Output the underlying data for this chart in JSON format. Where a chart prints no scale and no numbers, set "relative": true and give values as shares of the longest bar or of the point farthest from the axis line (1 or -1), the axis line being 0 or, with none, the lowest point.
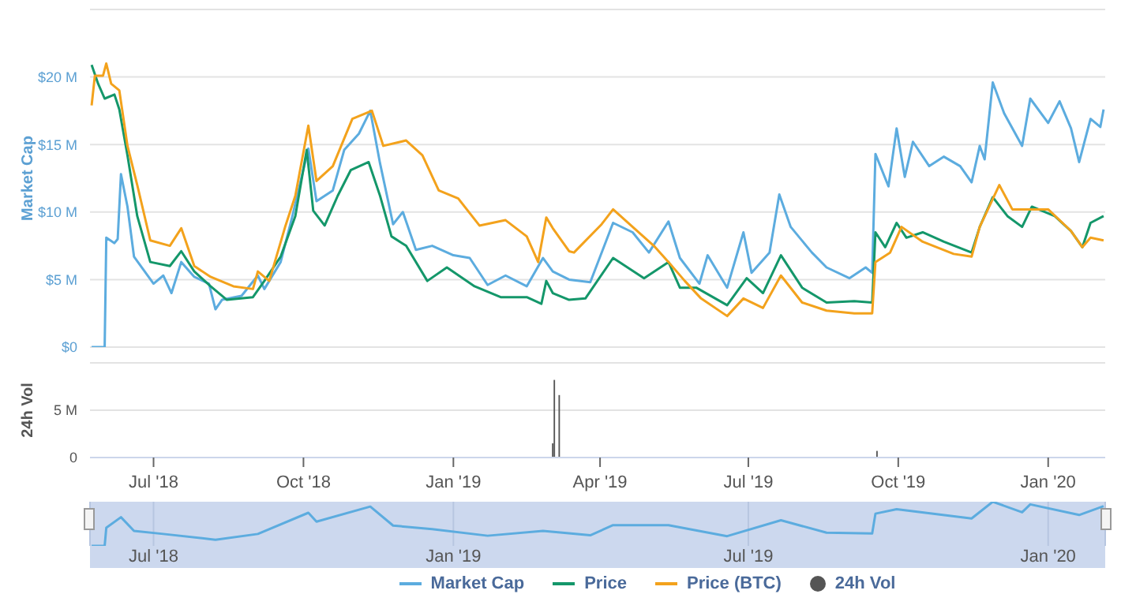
{
  "chart_data": [
    {
      "type": "line",
      "ylabel": "Market Cap",
      "xlim": [
        "2018-05-23",
        "2020-02-05"
      ],
      "ylim": [
        0,
        25
      ],
      "yticks": [
        {
          "value": 0,
          "label": "$0"
        },
        {
          "value": 5,
          "label": "$5 M"
        },
        {
          "value": 10,
          "label": "$10 M"
        },
        {
          "value": 15,
          "label": "$15 M"
        },
        {
          "value": 20,
          "label": "$20 M"
        },
        {
          "value": 25,
          "label": null
        }
      ],
      "grid": "y",
      "legend": "bottom",
      "tick_labels": "y",
      "series": [
        {
          "name": "Market Cap",
          "color": "#5cacdf",
          "x": [
            "2018-05-24",
            "2018-06-01",
            "2018-06-02",
            "2018-06-07",
            "2018-06-09",
            "2018-06-11",
            "2018-06-15",
            "2018-06-19",
            "2018-07-01",
            "2018-07-07",
            "2018-07-12",
            "2018-07-18",
            "2018-07-26",
            "2018-08-04",
            "2018-08-08",
            "2018-08-12",
            "2018-08-24",
            "2018-09-03",
            "2018-09-07",
            "2018-09-17",
            "2018-09-24",
            "2018-10-04",
            "2018-10-09",
            "2018-10-19",
            "2018-10-26",
            "2018-11-04",
            "2018-11-11",
            "2018-11-17",
            "2018-11-25",
            "2018-12-01",
            "2018-12-09",
            "2018-12-19",
            "2019-01-01",
            "2019-01-11",
            "2019-01-22",
            "2019-02-02",
            "2019-02-15",
            "2019-02-25",
            "2019-03-03",
            "2019-03-13",
            "2019-03-26",
            "2019-04-09",
            "2019-04-21",
            "2019-05-01",
            "2019-05-13",
            "2019-05-20",
            "2019-06-01",
            "2019-06-06",
            "2019-06-18",
            "2019-06-28",
            "2019-07-03",
            "2019-07-14",
            "2019-07-20",
            "2019-07-27",
            "2019-08-09",
            "2019-08-18",
            "2019-09-01",
            "2019-09-11",
            "2019-09-15",
            "2019-09-17",
            "2019-09-25",
            "2019-09-30",
            "2019-10-05",
            "2019-10-10",
            "2019-10-20",
            "2019-10-29",
            "2019-11-08",
            "2019-11-15",
            "2019-11-20",
            "2019-11-23",
            "2019-11-28",
            "2019-12-05",
            "2019-12-16",
            "2019-12-21",
            "2020-01-01",
            "2020-01-08",
            "2020-01-15",
            "2020-01-20",
            "2020-01-27",
            "2020-02-02",
            "2020-02-04"
          ],
          "values": [
            0,
            0,
            8.1,
            7.7,
            8.0,
            12.8,
            10.4,
            6.7,
            4.7,
            5.3,
            4.0,
            6.3,
            5.2,
            4.7,
            2.8,
            3.5,
            3.8,
            5.3,
            4.3,
            6.3,
            9.6,
            14.7,
            10.8,
            11.6,
            14.6,
            15.8,
            17.5,
            13.6,
            9.1,
            10.0,
            7.2,
            7.5,
            6.8,
            6.6,
            4.6,
            5.3,
            4.5,
            6.6,
            5.6,
            5.0,
            4.8,
            9.2,
            8.5,
            7.0,
            9.3,
            6.6,
            4.7,
            6.8,
            4.4,
            8.5,
            5.5,
            7.0,
            11.3,
            8.9,
            7.0,
            5.9,
            5.1,
            5.9,
            5.5,
            14.3,
            11.9,
            16.2,
            12.6,
            15.2,
            13.4,
            14.1,
            13.4,
            12.2,
            14.9,
            13.9,
            19.6,
            17.3,
            14.9,
            18.4,
            16.6,
            18.2,
            16.2,
            13.7,
            16.9,
            16.3,
            17.6
          ]
        },
        {
          "name": "Price",
          "color": "#14976a",
          "x": [
            "2018-05-24",
            "2018-05-28",
            "2018-06-01",
            "2018-06-07",
            "2018-06-10",
            "2018-06-15",
            "2018-06-21",
            "2018-06-29",
            "2018-07-11",
            "2018-07-18",
            "2018-07-26",
            "2018-08-05",
            "2018-08-15",
            "2018-08-31",
            "2018-09-07",
            "2018-09-17",
            "2018-09-26",
            "2018-10-03",
            "2018-10-07",
            "2018-10-14",
            "2018-10-22",
            "2018-10-30",
            "2018-11-10",
            "2018-11-17",
            "2018-11-24",
            "2018-12-03",
            "2018-12-16",
            "2018-12-28",
            "2019-01-14",
            "2019-01-30",
            "2019-02-15",
            "2019-02-24",
            "2019-02-27",
            "2019-03-03",
            "2019-03-13",
            "2019-03-23",
            "2019-04-09",
            "2019-04-28",
            "2019-05-13",
            "2019-05-20",
            "2019-05-30",
            "2019-06-18",
            "2019-06-30",
            "2019-07-10",
            "2019-07-21",
            "2019-08-03",
            "2019-08-18",
            "2019-09-04",
            "2019-09-15",
            "2019-09-17",
            "2019-09-23",
            "2019-09-30",
            "2019-10-06",
            "2019-10-16",
            "2019-10-29",
            "2019-11-15",
            "2019-11-20",
            "2019-11-28",
            "2019-12-07",
            "2019-12-16",
            "2019-12-22",
            "2020-01-05",
            "2020-01-15",
            "2020-01-22",
            "2020-01-27",
            "2020-02-04"
          ],
          "values": [
            20.9,
            19.5,
            18.4,
            18.7,
            17.6,
            14.2,
            9.7,
            6.3,
            6.0,
            7.1,
            5.6,
            4.5,
            3.5,
            3.7,
            4.9,
            6.7,
            9.7,
            14.6,
            10.1,
            9.0,
            11.2,
            13.1,
            13.7,
            11.2,
            8.2,
            7.5,
            4.9,
            5.9,
            4.5,
            3.7,
            3.7,
            3.2,
            4.9,
            4.0,
            3.5,
            3.6,
            6.6,
            5.1,
            6.3,
            4.4,
            4.4,
            3.1,
            5.1,
            4.0,
            6.8,
            4.4,
            3.3,
            3.4,
            3.3,
            8.5,
            7.4,
            9.2,
            8.1,
            8.5,
            7.8,
            7.0,
            8.9,
            11.1,
            9.7,
            8.9,
            10.4,
            9.7,
            8.6,
            7.4,
            9.2,
            9.7
          ]
        },
        {
          "name": "Price (BTC)",
          "color": "#f3a21c",
          "x": [
            "2018-05-24",
            "2018-05-26",
            "2018-05-31",
            "2018-06-02",
            "2018-06-05",
            "2018-06-10",
            "2018-06-15",
            "2018-06-21",
            "2018-06-29",
            "2018-07-11",
            "2018-07-18",
            "2018-07-26",
            "2018-08-05",
            "2018-08-19",
            "2018-08-31",
            "2018-09-03",
            "2018-09-10",
            "2018-09-20",
            "2018-09-26",
            "2018-10-04",
            "2018-10-09",
            "2018-10-19",
            "2018-10-31",
            "2018-11-12",
            "2018-11-19",
            "2018-12-03",
            "2018-12-13",
            "2018-12-23",
            "2019-01-04",
            "2019-01-17",
            "2019-02-02",
            "2019-02-15",
            "2019-02-22",
            "2019-02-27",
            "2019-03-03",
            "2019-03-13",
            "2019-03-16",
            "2019-04-02",
            "2019-04-09",
            "2019-04-21",
            "2019-05-04",
            "2019-05-13",
            "2019-05-23",
            "2019-06-02",
            "2019-06-18",
            "2019-06-28",
            "2019-07-10",
            "2019-07-21",
            "2019-08-03",
            "2019-08-18",
            "2019-09-04",
            "2019-09-15",
            "2019-09-17",
            "2019-09-26",
            "2019-10-03",
            "2019-10-16",
            "2019-11-04",
            "2019-11-15",
            "2019-11-20",
            "2019-12-02",
            "2019-12-10",
            "2019-12-19",
            "2020-01-01",
            "2020-01-15",
            "2020-01-22",
            "2020-01-27",
            "2020-02-04"
          ],
          "values": [
            17.9,
            20.1,
            20.1,
            21.0,
            19.5,
            19.0,
            14.9,
            12.0,
            7.9,
            7.5,
            8.8,
            6.0,
            5.2,
            4.5,
            4.3,
            5.6,
            4.9,
            9.0,
            11.2,
            16.4,
            12.3,
            13.4,
            16.9,
            17.5,
            14.9,
            15.3,
            14.2,
            11.6,
            11.0,
            9.0,
            9.4,
            8.2,
            6.3,
            9.6,
            8.8,
            7.1,
            7.0,
            9.1,
            10.2,
            8.9,
            7.5,
            6.3,
            4.9,
            3.6,
            2.3,
            3.6,
            2.9,
            5.3,
            3.3,
            2.7,
            2.5,
            2.5,
            6.3,
            7.0,
            8.9,
            7.8,
            6.9,
            6.7,
            8.9,
            12.0,
            10.2,
            10.2,
            10.2,
            8.6,
            7.4,
            8.1,
            7.9
          ]
        }
      ]
    },
    {
      "type": "bar",
      "ylabel": "24h Vol",
      "xlim": [
        "2018-05-23",
        "2020-02-05"
      ],
      "xticks": [
        {
          "value": "2018-07-01",
          "label": "Jul '18"
        },
        {
          "value": "2018-10-01",
          "label": "Oct '18"
        },
        {
          "value": "2019-01-01",
          "label": "Jan '19"
        },
        {
          "value": "2019-04-01",
          "label": "Apr '19"
        },
        {
          "value": "2019-07-01",
          "label": "Jul '19"
        },
        {
          "value": "2019-10-01",
          "label": "Oct '19"
        },
        {
          "value": "2020-01-01",
          "label": "Jan '20"
        }
      ],
      "ylim": [
        0,
        10
      ],
      "yticks": [
        0,
        {
          "value": 5,
          "label": "5 M"
        },
        {
          "value": 10,
          "label": null
        }
      ],
      "grid": "y",
      "legend": "bottom",
      "x": [
        "2019-03-03",
        "2019-03-04",
        "2019-03-07",
        "2019-09-18"
      ],
      "series": [
        {
          "name": "24h Vol",
          "color": "#555555",
          "values": [
            1.5,
            8.2,
            6.6,
            0.7
          ]
        }
      ]
    },
    {
      "type": "line",
      "relative": true,
      "xlim": [
        "2018-05-23",
        "2020-02-05"
      ],
      "xticks": [
        {
          "value": "2018-07-01",
          "label": "Jul '18"
        },
        {
          "value": "2019-01-01",
          "label": "Jan '19"
        },
        {
          "value": "2019-07-01",
          "label": "Jul '19"
        },
        {
          "value": "2020-01-01",
          "label": "Jan '20"
        }
      ],
      "grid": "x",
      "tick_labels": "x",
      "x": [
        "2018-05-24",
        "2018-06-01",
        "2018-06-02",
        "2018-06-11",
        "2018-06-19",
        "2018-07-07",
        "2018-08-08",
        "2018-09-03",
        "2018-10-04",
        "2018-10-09",
        "2018-11-11",
        "2018-11-25",
        "2018-12-19",
        "2019-01-22",
        "2019-02-25",
        "2019-03-26",
        "2019-04-09",
        "2019-05-13",
        "2019-06-18",
        "2019-07-21",
        "2019-08-18",
        "2019-09-15",
        "2019-09-17",
        "2019-09-30",
        "2019-11-15",
        "2019-11-28",
        "2019-12-16",
        "2019-12-21",
        "2020-01-20",
        "2020-02-04"
      ],
      "series": [
        {
          "color": "#5cacdf",
          "values": [
            0,
            0,
            0.41,
            0.65,
            0.34,
            0.27,
            0.14,
            0.27,
            0.75,
            0.55,
            0.89,
            0.46,
            0.38,
            0.23,
            0.34,
            0.24,
            0.47,
            0.47,
            0.22,
            0.58,
            0.3,
            0.28,
            0.73,
            0.83,
            0.62,
            1,
            0.76,
            0.94,
            0.7,
            0.9
          ]
        }
      ]
    }
  ]
}
